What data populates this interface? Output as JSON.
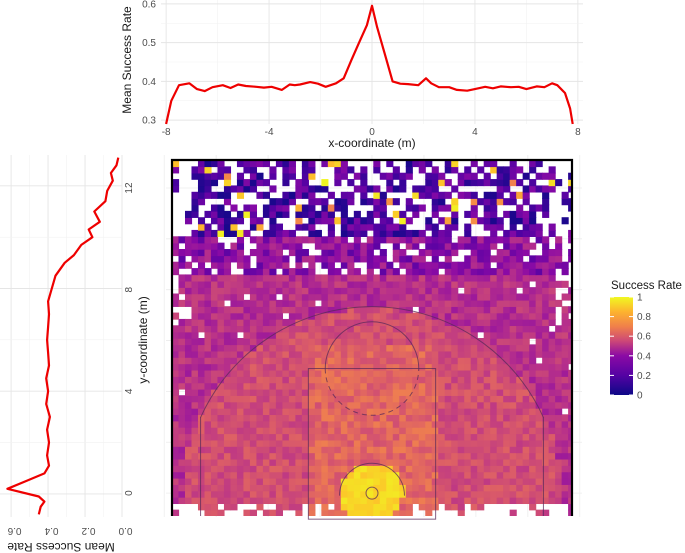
{
  "chart_data": [
    {
      "type": "line",
      "title": "",
      "xlabel": "x-coordinate (m)",
      "ylabel": "Mean Success Rate",
      "xlim": [
        -8.2,
        8.2
      ],
      "ylim": [
        0.29,
        0.61
      ],
      "xticks": [
        -8,
        -4,
        0,
        4,
        8
      ],
      "yticks": [
        0.3,
        0.4,
        0.5,
        0.6
      ],
      "xtick_labels": [
        "-8",
        "-4",
        "0",
        "4",
        "8"
      ],
      "ytick_labels": [
        "0.3",
        "0.4",
        "0.5",
        "0.6"
      ],
      "line_color": "#ee0000",
      "x": [
        -8.0,
        -7.8,
        -7.5,
        -7.1,
        -6.8,
        -6.5,
        -6.2,
        -5.8,
        -5.5,
        -5.2,
        -4.9,
        -4.5,
        -4.2,
        -3.9,
        -3.5,
        -3.2,
        -3.0,
        -2.8,
        -2.4,
        -2.1,
        -1.8,
        -1.4,
        -1.1,
        -0.8,
        -0.5,
        -0.2,
        0.0,
        0.2,
        0.5,
        0.8,
        1.1,
        1.4,
        1.8,
        2.1,
        2.3,
        2.6,
        3.0,
        3.3,
        3.7,
        4.0,
        4.4,
        4.7,
        5.0,
        5.4,
        5.7,
        6.0,
        6.4,
        6.7,
        7.0,
        7.2,
        7.5,
        7.7,
        7.8
      ],
      "y": [
        0.29,
        0.35,
        0.39,
        0.395,
        0.38,
        0.375,
        0.385,
        0.39,
        0.383,
        0.392,
        0.388,
        0.386,
        0.384,
        0.386,
        0.378,
        0.392,
        0.39,
        0.392,
        0.398,
        0.394,
        0.386,
        0.395,
        0.408,
        0.455,
        0.5,
        0.545,
        0.595,
        0.54,
        0.47,
        0.4,
        0.394,
        0.393,
        0.39,
        0.408,
        0.395,
        0.385,
        0.385,
        0.378,
        0.376,
        0.38,
        0.386,
        0.382,
        0.387,
        0.385,
        0.386,
        0.38,
        0.387,
        0.385,
        0.395,
        0.39,
        0.37,
        0.33,
        0.29
      ]
    },
    {
      "type": "line",
      "title": "",
      "orientation": "rotated",
      "xlabel": "Mean Success Rate",
      "ylabel": "",
      "xlim": [
        0.0,
        0.66
      ],
      "ylim": [
        -0.9,
        13.2
      ],
      "xticks": [
        0.6,
        0.4,
        0.2,
        0.0
      ],
      "xtick_labels": [
        "0.6",
        "0.4",
        "0.2",
        "0.0"
      ],
      "line_color": "#ee0000",
      "y": [
        -0.8,
        -0.5,
        -0.3,
        -0.1,
        0.2,
        0.5,
        0.8,
        1.1,
        1.5,
        2.0,
        2.5,
        3.0,
        3.5,
        4.0,
        4.5,
        5.0,
        5.5,
        6.0,
        6.5,
        7.0,
        7.5,
        8.0,
        8.5,
        9.0,
        9.3,
        9.7,
        10.0,
        10.3,
        10.6,
        11.0,
        11.4,
        11.8,
        12.2,
        12.5,
        12.8,
        13.1
      ],
      "x": [
        0.45,
        0.44,
        0.42,
        0.45,
        0.62,
        0.52,
        0.42,
        0.395,
        0.405,
        0.395,
        0.405,
        0.39,
        0.41,
        0.4,
        0.41,
        0.395,
        0.4,
        0.405,
        0.4,
        0.395,
        0.4,
        0.38,
        0.36,
        0.31,
        0.26,
        0.22,
        0.16,
        0.18,
        0.12,
        0.15,
        0.09,
        0.08,
        0.05,
        0.06,
        0.03,
        0.02
      ]
    },
    {
      "type": "heatmap",
      "title": "",
      "xlabel": "",
      "ylabel": "y-coordinate (m)",
      "xlim": [
        -7.7,
        7.7
      ],
      "ylim": [
        -0.9,
        13.1
      ],
      "yticks": [
        0,
        4,
        8,
        12
      ],
      "ytick_labels": [
        "0",
        "4",
        "8",
        "12"
      ],
      "value_range": [
        0,
        1
      ],
      "description_of_values": "Mean success rate per court cell: ~0.75-0.95 under the basket (y<1), ~0.45-0.6 within the key, ~0.35-0.5 midrange out to the arc, decaying to ~0.2 near y=9 and mostly 0-0.15 or empty beyond y=10.",
      "court_lines": {
        "three_point_radius_m": 7.24,
        "key_width_m": 4.9,
        "key_height_m": 5.8,
        "free_throw_circle_radius_m": 1.8,
        "restricted_area_radius_m": 1.25,
        "rim_radius_m": 0.23
      },
      "colorbar": {
        "title": "Success Rate",
        "ticks": [
          0,
          0.2,
          0.4,
          0.6,
          0.8,
          1
        ],
        "tick_labels": [
          "0",
          "0.2",
          "0.4",
          "0.6",
          "0.8",
          "1"
        ],
        "colors": [
          "#0d0887",
          "#6a00a8",
          "#b12a90",
          "#e16462",
          "#fca636",
          "#f0f921"
        ]
      }
    }
  ]
}
